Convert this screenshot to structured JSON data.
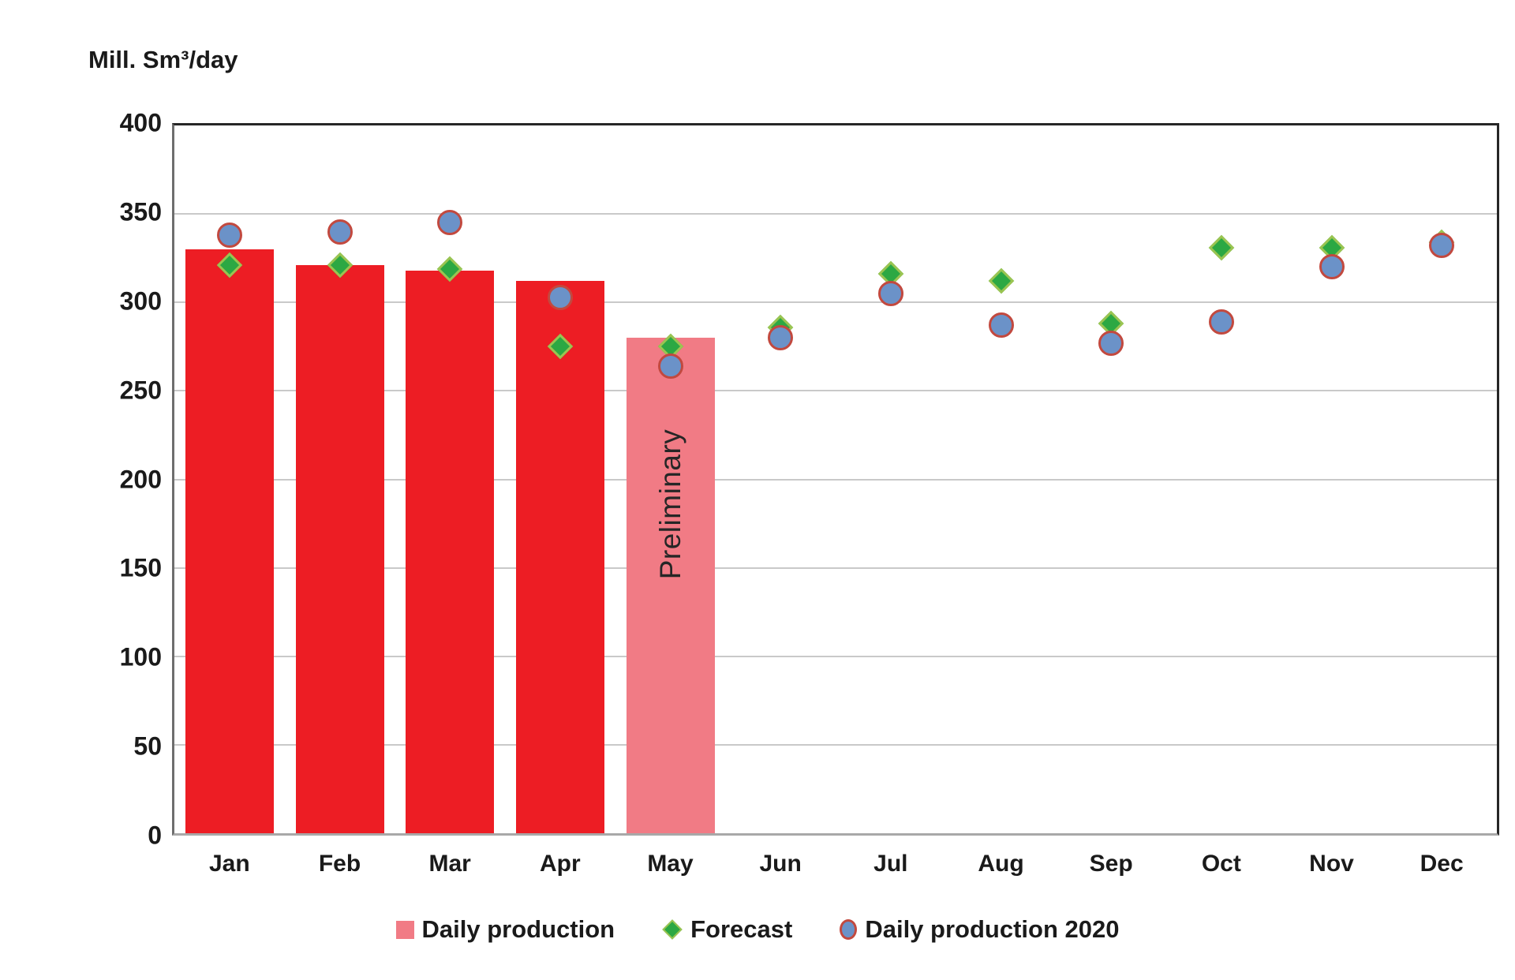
{
  "title": "Mill. Sm³/day",
  "colors": {
    "bar": "#ED1D24",
    "bar_preliminary": "#F17B85",
    "forecast_fill": "#2CA843",
    "forecast_border": "#9BC451",
    "prod2020_fill": "#6B92C8",
    "prod2020_border": "#C2493F",
    "gridline": "#C9C9C9",
    "text": "#1A1A1A"
  },
  "legend": {
    "items": [
      {
        "label": "Daily production",
        "marker": "square"
      },
      {
        "label": "Forecast",
        "marker": "diamond"
      },
      {
        "label": "Daily production 2020",
        "marker": "circle"
      }
    ]
  },
  "chart_data": {
    "type": "bar",
    "title": "Mill. Sm³/day",
    "categories": [
      "Jan",
      "Feb",
      "Mar",
      "Apr",
      "May",
      "Jun",
      "Jul",
      "Aug",
      "Sep",
      "Oct",
      "Nov",
      "Dec"
    ],
    "series": [
      {
        "name": "Daily production",
        "type": "bar",
        "values": [
          330,
          321,
          318,
          312,
          280,
          null,
          null,
          null,
          null,
          null,
          null,
          null
        ]
      },
      {
        "name": "Forecast",
        "type": "scatter",
        "marker": "diamond",
        "values": [
          321,
          321,
          319,
          275,
          275,
          286,
          316,
          312,
          288,
          331,
          331,
          334
        ]
      },
      {
        "name": "Daily production 2020",
        "type": "scatter",
        "marker": "circle",
        "values": [
          338,
          340,
          345,
          303,
          264,
          280,
          305,
          287,
          277,
          289,
          320,
          332
        ]
      }
    ],
    "xlabel": "",
    "ylabel": "Mill. Sm³/day",
    "ylim": [
      0,
      400
    ],
    "yticks": [
      0,
      50,
      100,
      150,
      200,
      250,
      300,
      350,
      400
    ],
    "grid": true,
    "legend_position": "bottom",
    "preliminary_month_index": 4,
    "annotations": [
      {
        "text": "Preliminary",
        "month": "May",
        "y_value": 186,
        "rotation": -90
      }
    ]
  }
}
